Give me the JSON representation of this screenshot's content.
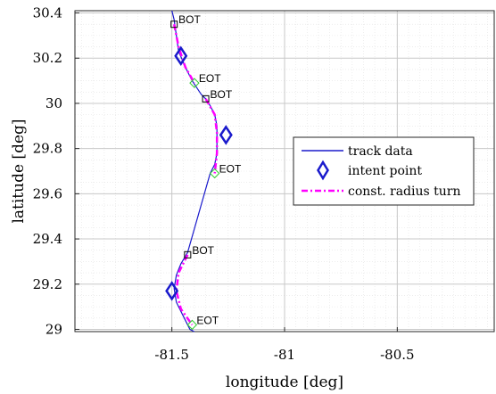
{
  "chart_data": {
    "type": "line",
    "xlabel": "longitude [deg]",
    "ylabel": "latitude [deg]",
    "xlim": [
      -81.93,
      -80.07
    ],
    "ylim": [
      28.99,
      30.41
    ],
    "x_ticks": [
      -81.5,
      -81,
      -80.5
    ],
    "x_tick_labels": [
      "-81.5",
      "-81",
      "-80.5"
    ],
    "y_ticks": [
      29,
      29.2,
      29.4,
      29.6,
      29.8,
      30,
      30.2,
      30.4
    ],
    "y_tick_labels": [
      "29",
      "29.2",
      "29.4",
      "29.6",
      "29.8",
      "30",
      "30.2",
      "30.4"
    ],
    "grid": "major and minor",
    "legend_position": "right",
    "colors": {
      "track": "#1a1acc",
      "intent": "#1a1acc",
      "turn": "#ff00ff",
      "bot_marker": "#000000",
      "eot_marker": "#33cc33"
    },
    "series": [
      {
        "name": "track data",
        "style": "solid-line",
        "points": [
          [
            -81.5,
            30.41
          ],
          [
            -81.49,
            30.37
          ],
          [
            -81.48,
            30.3
          ],
          [
            -81.47,
            30.23
          ],
          [
            -81.44,
            30.16
          ],
          [
            -81.41,
            30.1
          ],
          [
            -81.37,
            30.04
          ],
          [
            -81.35,
            30.02
          ],
          [
            -81.33,
            29.99
          ],
          [
            -81.31,
            29.95
          ],
          [
            -81.3,
            29.9
          ],
          [
            -81.3,
            29.84
          ],
          [
            -81.3,
            29.78
          ],
          [
            -81.31,
            29.73
          ],
          [
            -81.33,
            29.69
          ],
          [
            -81.43,
            29.34
          ],
          [
            -81.46,
            29.29
          ],
          [
            -81.48,
            29.24
          ],
          [
            -81.49,
            29.18
          ],
          [
            -81.48,
            29.12
          ],
          [
            -81.45,
            29.06
          ],
          [
            -81.42,
            29.0
          ],
          [
            -81.4,
            28.99
          ]
        ]
      },
      {
        "name": "intent point",
        "style": "diamond-marker",
        "points": [
          [
            -81.46,
            30.21
          ],
          [
            -81.26,
            29.86
          ],
          [
            -81.5,
            29.17
          ]
        ]
      },
      {
        "name": "const. radius turn",
        "style": "dash-dot-line",
        "segments": [
          [
            [
              -81.49,
              30.35
            ],
            [
              -81.47,
              30.25
            ],
            [
              -81.44,
              30.16
            ],
            [
              -81.4,
              30.09
            ]
          ],
          [
            [
              -81.35,
              30.02
            ],
            [
              -81.31,
              29.95
            ],
            [
              -81.3,
              29.87
            ],
            [
              -81.3,
              29.78
            ],
            [
              -81.31,
              29.69
            ]
          ],
          [
            [
              -81.43,
              29.33
            ],
            [
              -81.47,
              29.25
            ],
            [
              -81.48,
              29.17
            ],
            [
              -81.46,
              29.09
            ],
            [
              -81.41,
              29.02
            ]
          ]
        ]
      }
    ],
    "annotations": [
      {
        "text": "BOT",
        "x": -81.49,
        "y": 30.35,
        "marker": "square"
      },
      {
        "text": "EOT",
        "x": -81.4,
        "y": 30.09,
        "marker": "small-diamond"
      },
      {
        "text": "BOT",
        "x": -81.35,
        "y": 30.02,
        "marker": "square"
      },
      {
        "text": "EOT",
        "x": -81.31,
        "y": 29.69,
        "marker": "small-diamond"
      },
      {
        "text": "BOT",
        "x": -81.43,
        "y": 29.33,
        "marker": "square"
      },
      {
        "text": "EOT",
        "x": -81.41,
        "y": 29.02,
        "marker": "small-diamond"
      }
    ]
  }
}
